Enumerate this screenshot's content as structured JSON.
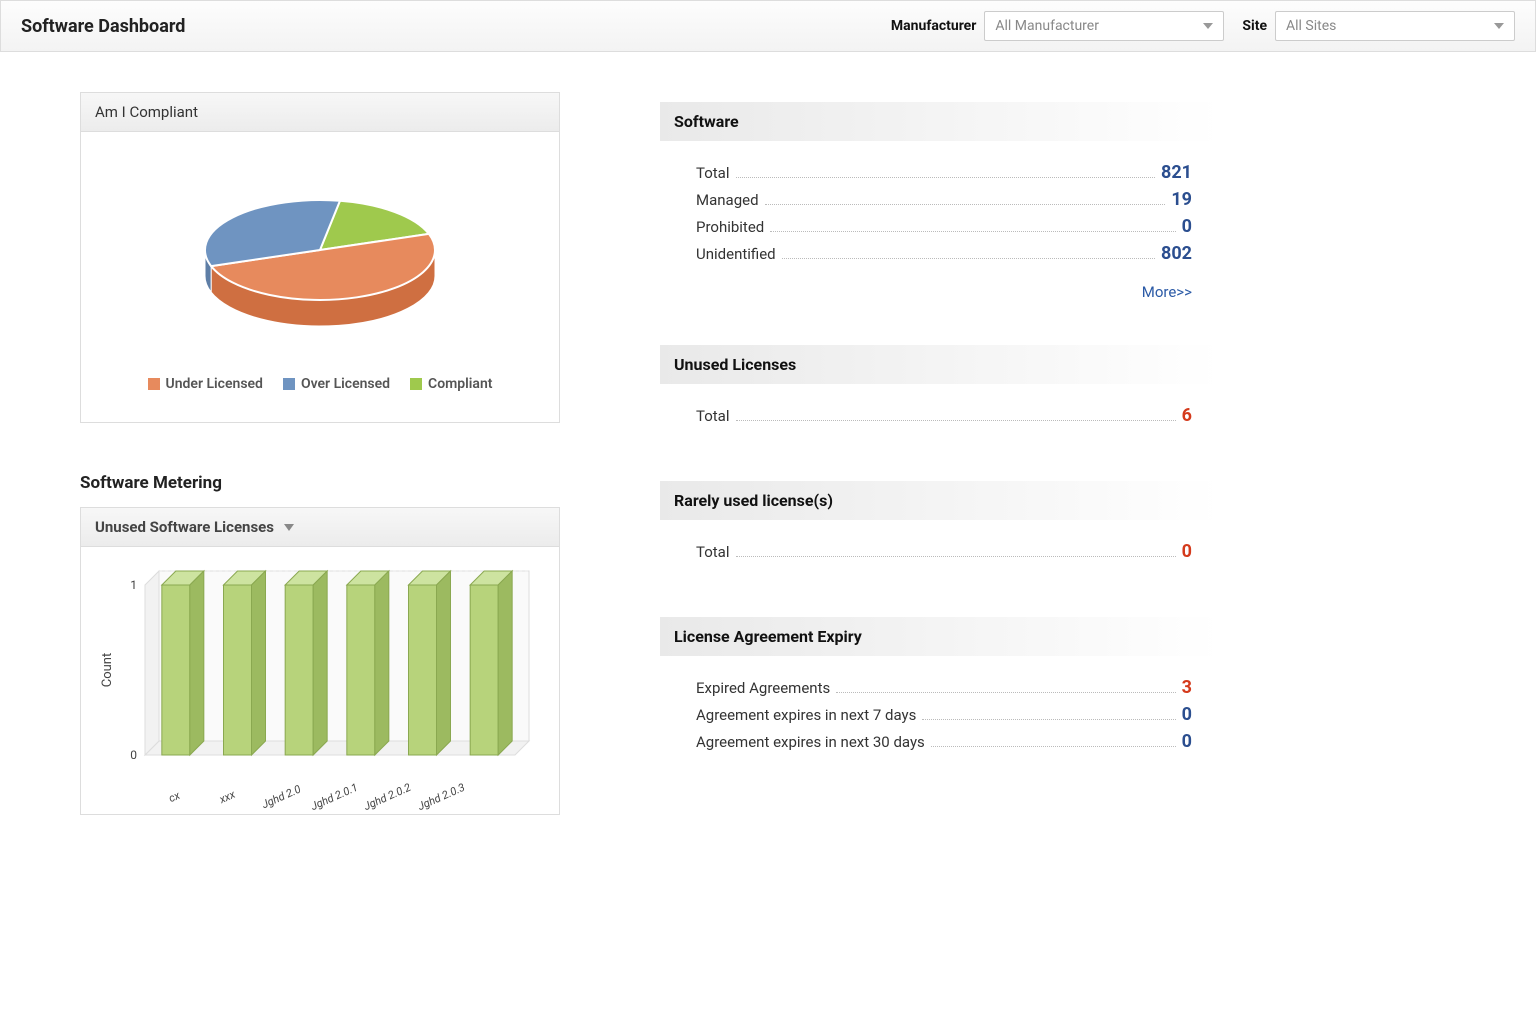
{
  "header": {
    "title": "Software Dashboard",
    "manufacturer_label": "Manufacturer",
    "manufacturer_value": "All Manufacturer",
    "site_label": "Site",
    "site_value": "All Sites"
  },
  "compliance_chart": {
    "title": "Am I Compliant",
    "type": "pie-3d",
    "slices": [
      {
        "label": "Under Licensed",
        "value": 50,
        "color": "#e78a5d"
      },
      {
        "label": "Over Licensed",
        "value": 33,
        "color": "#6f94c1"
      },
      {
        "label": "Compliant",
        "value": 17,
        "color": "#9fc94d"
      }
    ],
    "side_shade": {
      "under": "#cf6f41",
      "over": "#5e7ea6"
    }
  },
  "metering": {
    "section_title": "Software Metering",
    "dropdown_label": "Unused Software Licenses",
    "chart": {
      "type": "bar-3d",
      "ylabel": "Count",
      "ylim": [
        0,
        1
      ],
      "ytick": 1,
      "bar_color": "#b7d37b",
      "bar_shade": "#9cba60",
      "categories": [
        "cx",
        "xxx",
        "Jghd 2.0",
        "Jghd 2.0.1",
        "Jghd 2.0.2",
        "Jghd 2.0.3"
      ],
      "values": [
        1,
        1,
        1,
        1,
        1,
        1
      ],
      "background": "#ffffff",
      "grid_color": "#e6e6e6",
      "plot_face": "#f2f2f2"
    }
  },
  "software": {
    "title": "Software",
    "rows": [
      {
        "label": "Total",
        "value": "821",
        "color": "#2b4e8f"
      },
      {
        "label": "Managed",
        "value": "19",
        "color": "#2b4e8f"
      },
      {
        "label": "Prohibited",
        "value": "0",
        "color": "#2b4e8f"
      },
      {
        "label": "Unidentified",
        "value": "802",
        "color": "#2b4e8f"
      }
    ],
    "more_label": "More>>"
  },
  "unused": {
    "title": "Unused Licenses",
    "rows": [
      {
        "label": "Total",
        "value": "6",
        "color": "#d43a1c"
      }
    ]
  },
  "rarely": {
    "title": "Rarely used license(s)",
    "rows": [
      {
        "label": "Total",
        "value": "0",
        "color": "#d43a1c"
      }
    ]
  },
  "expiry": {
    "title": "License Agreement Expiry",
    "rows": [
      {
        "label": "Expired Agreements",
        "value": "3",
        "color": "#d43a1c"
      },
      {
        "label": "Agreement expires in next 7 days",
        "value": "0",
        "color": "#2b4e8f"
      },
      {
        "label": "Agreement expires in next 30 days",
        "value": "0",
        "color": "#2b4e8f"
      }
    ]
  }
}
